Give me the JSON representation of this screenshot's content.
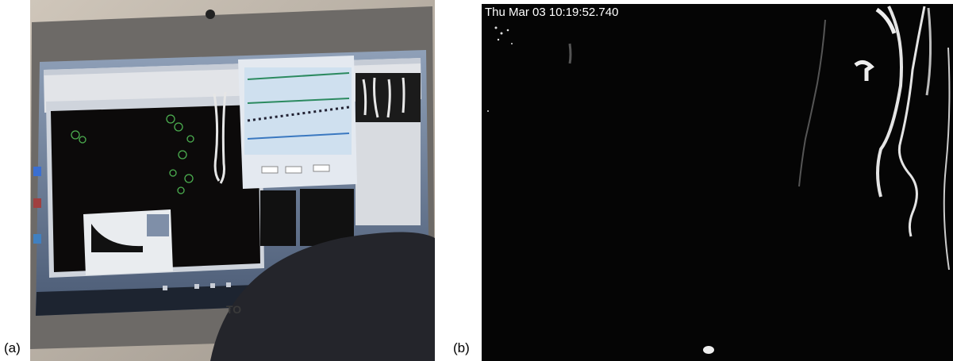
{
  "panels": [
    {
      "label": "(a)"
    },
    {
      "label": "(b)",
      "timestamp": "Thu Mar 03 10:19:52.740"
    }
  ]
}
